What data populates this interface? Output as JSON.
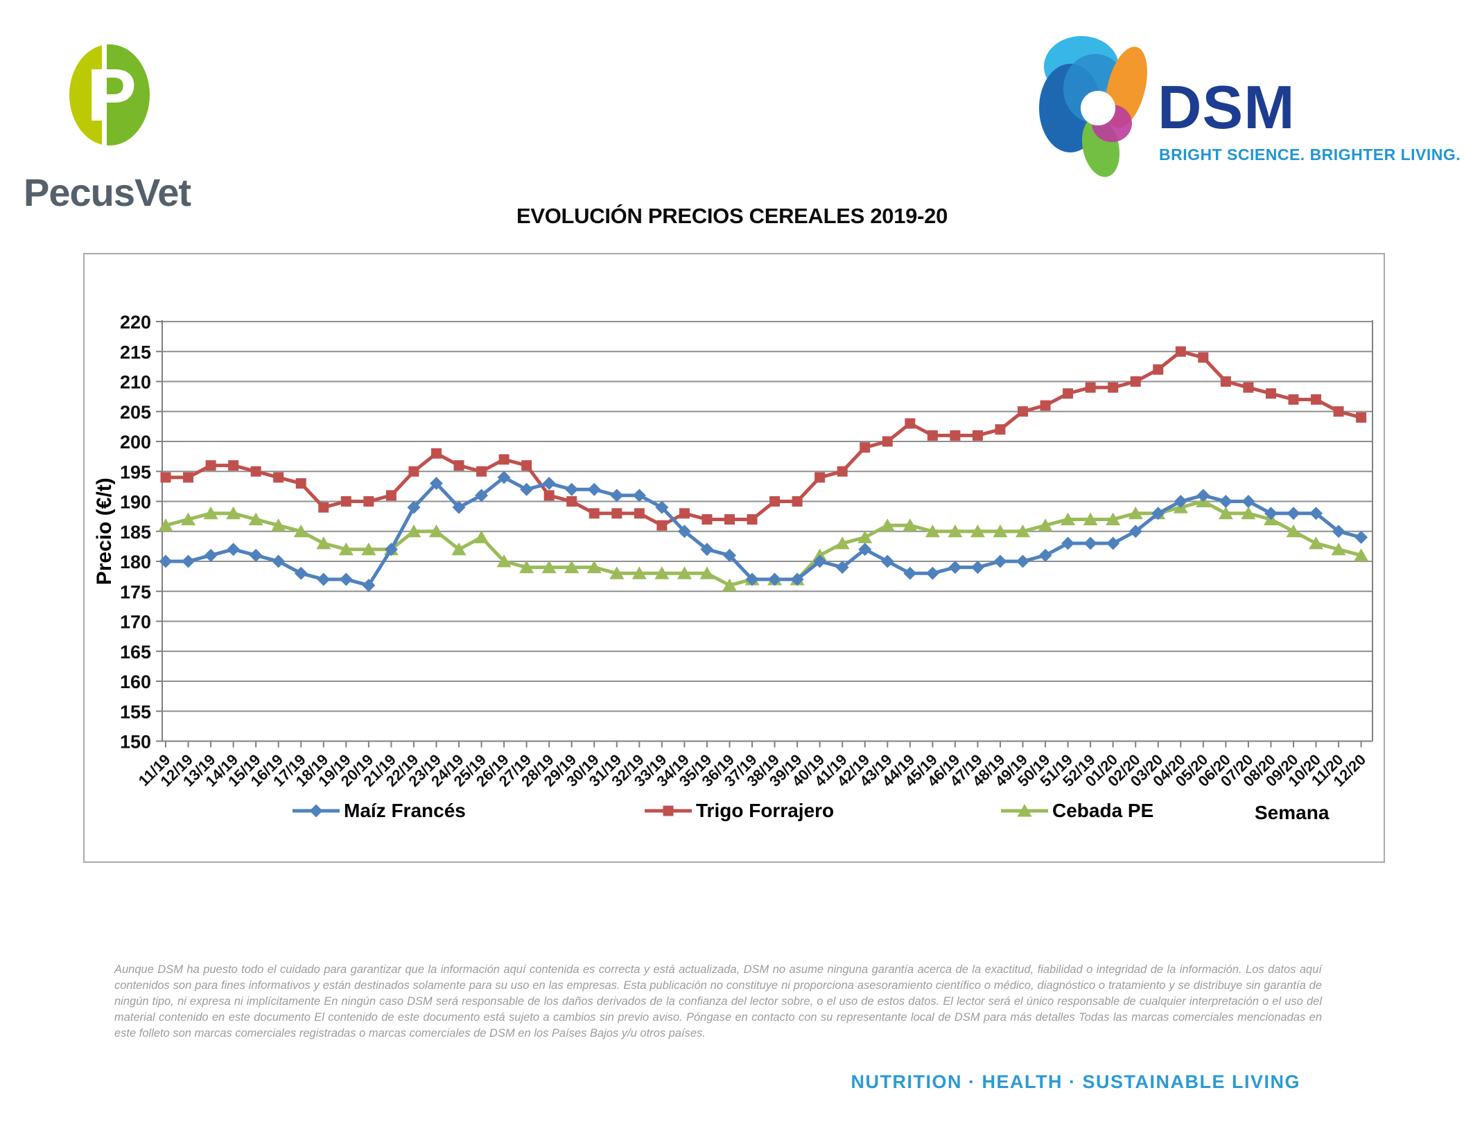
{
  "header": {
    "pecusvet": {
      "name": "PecusVet",
      "logo_letter": "P"
    },
    "dsm": {
      "name": "DSM",
      "tagline": "BRIGHT SCIENCE. BRIGHTER LIVING."
    }
  },
  "chart_data": {
    "type": "line",
    "title": "EVOLUCIÓN PRECIOS CEREALES 2019-20",
    "xlabel": "Semana",
    "ylabel": "Precio (€/t)",
    "ylim": [
      150,
      220
    ],
    "ytick_step": 5,
    "grid": true,
    "legend_position": "bottom",
    "x_tick_rotation": 45,
    "categories": [
      "11/19",
      "12/19",
      "13/19",
      "14/19",
      "15/19",
      "16/19",
      "17/19",
      "18/19",
      "19/19",
      "20/19",
      "21/19",
      "22/19",
      "23/19",
      "24/19",
      "25/19",
      "26/19",
      "27/19",
      "28/19",
      "29/19",
      "30/19",
      "31/19",
      "32/19",
      "33/19",
      "34/19",
      "35/19",
      "36/19",
      "37/19",
      "38/19",
      "39/19",
      "40/19",
      "41/19",
      "42/19",
      "43/19",
      "44/19",
      "45/19",
      "46/19",
      "47/19",
      "48/19",
      "49/19",
      "50/19",
      "51/19",
      "52/19",
      "01/20",
      "02/20",
      "03/20",
      "04/20",
      "05/20",
      "06/20",
      "07/20",
      "08/20",
      "09/20",
      "10/20",
      "11/20",
      "12/20"
    ],
    "series": [
      {
        "name": "Maíz Francés",
        "color": "#4F81BD",
        "marker": "diamond",
        "values": [
          180,
          180,
          181,
          182,
          181,
          180,
          178,
          177,
          177,
          176,
          182,
          189,
          193,
          189,
          191,
          194,
          192,
          193,
          192,
          192,
          191,
          191,
          189,
          185,
          182,
          181,
          177,
          177,
          177,
          180,
          179,
          182,
          180,
          178,
          178,
          179,
          179,
          180,
          180,
          181,
          183,
          183,
          183,
          185,
          188,
          190,
          191,
          190,
          190,
          188,
          188,
          188,
          185,
          184
        ]
      },
      {
        "name": "Trigo Forrajero",
        "color": "#C0504D",
        "marker": "square",
        "values": [
          194,
          194,
          196,
          196,
          195,
          194,
          193,
          189,
          190,
          190,
          191,
          195,
          198,
          196,
          195,
          197,
          196,
          191,
          190,
          188,
          188,
          188,
          186,
          188,
          187,
          187,
          187,
          190,
          190,
          194,
          195,
          199,
          200,
          203,
          201,
          201,
          201,
          202,
          205,
          206,
          208,
          209,
          209,
          210,
          212,
          215,
          214,
          210,
          209,
          208,
          207,
          207,
          205,
          204
        ]
      },
      {
        "name": "Cebada PE",
        "color": "#9BBB59",
        "marker": "triangle",
        "values": [
          186,
          187,
          188,
          188,
          187,
          186,
          185,
          183,
          182,
          182,
          182,
          185,
          185,
          182,
          184,
          180,
          179,
          179,
          179,
          179,
          178,
          178,
          178,
          178,
          178,
          176,
          177,
          177,
          177,
          181,
          183,
          184,
          186,
          186,
          185,
          185,
          185,
          185,
          185,
          186,
          187,
          187,
          187,
          188,
          188,
          189,
          190,
          188,
          188,
          187,
          185,
          183,
          182,
          181
        ]
      }
    ]
  },
  "footer": {
    "disclaimer": "Aunque DSM ha puesto todo el cuidado para garantizar que la información aquí contenida es correcta y está actualizada, DSM no asume ninguna garantía acerca de la exactitud, fiabilidad o integridad de la información. Los datos aquí contenidos son para fines informativos y están destinados solamente para su uso en las empresas. Esta publicación no constituye ni proporciona asesoramiento científico o médico, diagnóstico o tratamiento y se distribuye sin garantía de ningún tipo, ni expresa ni implícitamente En ningún caso DSM será responsable de los daños derivados de la confianza del lector sobre, o el uso de estos datos. El lector será el único responsable de cualquier interpretación o el uso del material contenido en este documento El contenido de este documento está sujeto a cambios sin previo aviso. Póngase en contacto con su representante local de DSM para más detalles Todas las marcas comerciales mencionadas en este folleto son marcas comerciales registradas o marcas comerciales de DSM en los Países Bajos y/u otros países.",
    "tagline": "NUTRITION · HEALTH · SUSTAINABLE LIVING"
  }
}
